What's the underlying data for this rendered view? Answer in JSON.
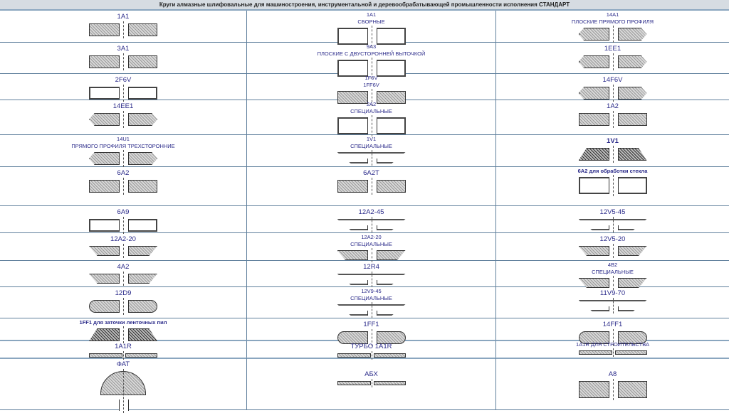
{
  "header": {
    "title": "Круги алмазные шлифовальные для машиностроения, инструментальной и деревообрабатывающей промышленности исполнения СТАНДАРТ"
  },
  "rows": [
    [
      {
        "lines": [
          "1A1"
        ]
      },
      {
        "lines": [
          "1A1",
          "СБОРНЫЕ"
        ],
        "small": true
      },
      {
        "lines": [
          "14A1",
          "ПЛОСКИЕ ПРЯМОГО ПРОФИЛЯ"
        ],
        "small": true
      }
    ],
    [
      {
        "lines": [
          "3A1"
        ]
      },
      {
        "lines": [
          "9A3",
          "ПЛОСКИЕ С ДВУСТОРОННЕЙ ВЫТОЧКОЙ"
        ],
        "small": true
      },
      {
        "lines": [
          "1EE1"
        ]
      }
    ],
    [
      {
        "lines": [
          "2F6V"
        ]
      },
      {
        "lines": [
          "1F6V",
          "1FF6V"
        ],
        "small": true
      },
      {
        "lines": [
          "14F6V"
        ]
      }
    ],
    [
      {
        "lines": [
          "14EE1"
        ]
      },
      {
        "lines": [
          "2A2",
          "СПЕЦИАЛЬНЫЕ"
        ],
        "small": true
      },
      {
        "lines": [
          "1A2"
        ]
      }
    ],
    [
      {
        "lines": [
          "14U1",
          "ПРЯМОГО ПРОФИЛЯ ТРЕХСТОРОННИЕ"
        ],
        "small": true
      },
      {
        "lines": [
          "1V1",
          "СПЕЦИАЛЬНЫЕ"
        ],
        "small": true
      },
      {
        "lines": [
          "1V1"
        ],
        "bold": true
      }
    ],
    [
      {
        "lines": [
          "6A2"
        ]
      },
      {
        "lines": [
          "6A2T"
        ]
      },
      {
        "lines": [
          "6A2 для обработки стекла"
        ],
        "small": true,
        "bold": true
      }
    ],
    [
      {
        "lines": [
          "6A9"
        ]
      },
      {
        "lines": [
          "12A2-45"
        ]
      },
      {
        "lines": [
          "12V5-45"
        ]
      }
    ],
    [
      {
        "lines": [
          "12A2-20"
        ]
      },
      {
        "lines": [
          "12A2-20",
          "СПЕЦИАЛЬНЫЕ"
        ],
        "small": true
      },
      {
        "lines": [
          "12V5-20"
        ]
      }
    ],
    [
      {
        "lines": [
          "4A2"
        ]
      },
      {
        "lines": [
          "12R4"
        ]
      },
      {
        "lines": [
          "4B2",
          "СПЕЦИАЛЬНЫЕ"
        ],
        "small": true
      }
    ],
    [
      {
        "lines": [
          "12D9"
        ]
      },
      {
        "lines": [
          "12V9-45",
          "СПЕЦИАЛЬНЫЕ"
        ],
        "small": true
      },
      {
        "lines": [
          "11V9-70"
        ]
      }
    ],
    [
      {
        "lines": [
          "1FF1 для заточки ленточных пил"
        ],
        "small": true,
        "bold": true
      },
      {
        "lines": [
          "1FF1"
        ]
      },
      {
        "lines": [
          "14FF1"
        ]
      }
    ],
    [
      {
        "lines": [
          "1A1R"
        ]
      },
      {
        "lines": [
          "ТУРБО 1A1R"
        ]
      },
      {
        "lines": [
          "1A1R ДЛЯ СТРОИТЕЛЬСТВА"
        ],
        "small": true
      }
    ],
    [
      {
        "lines": [
          "ФАТ"
        ]
      },
      {
        "lines": [
          "АБХ"
        ]
      },
      {
        "lines": [
          "A8"
        ]
      }
    ]
  ]
}
